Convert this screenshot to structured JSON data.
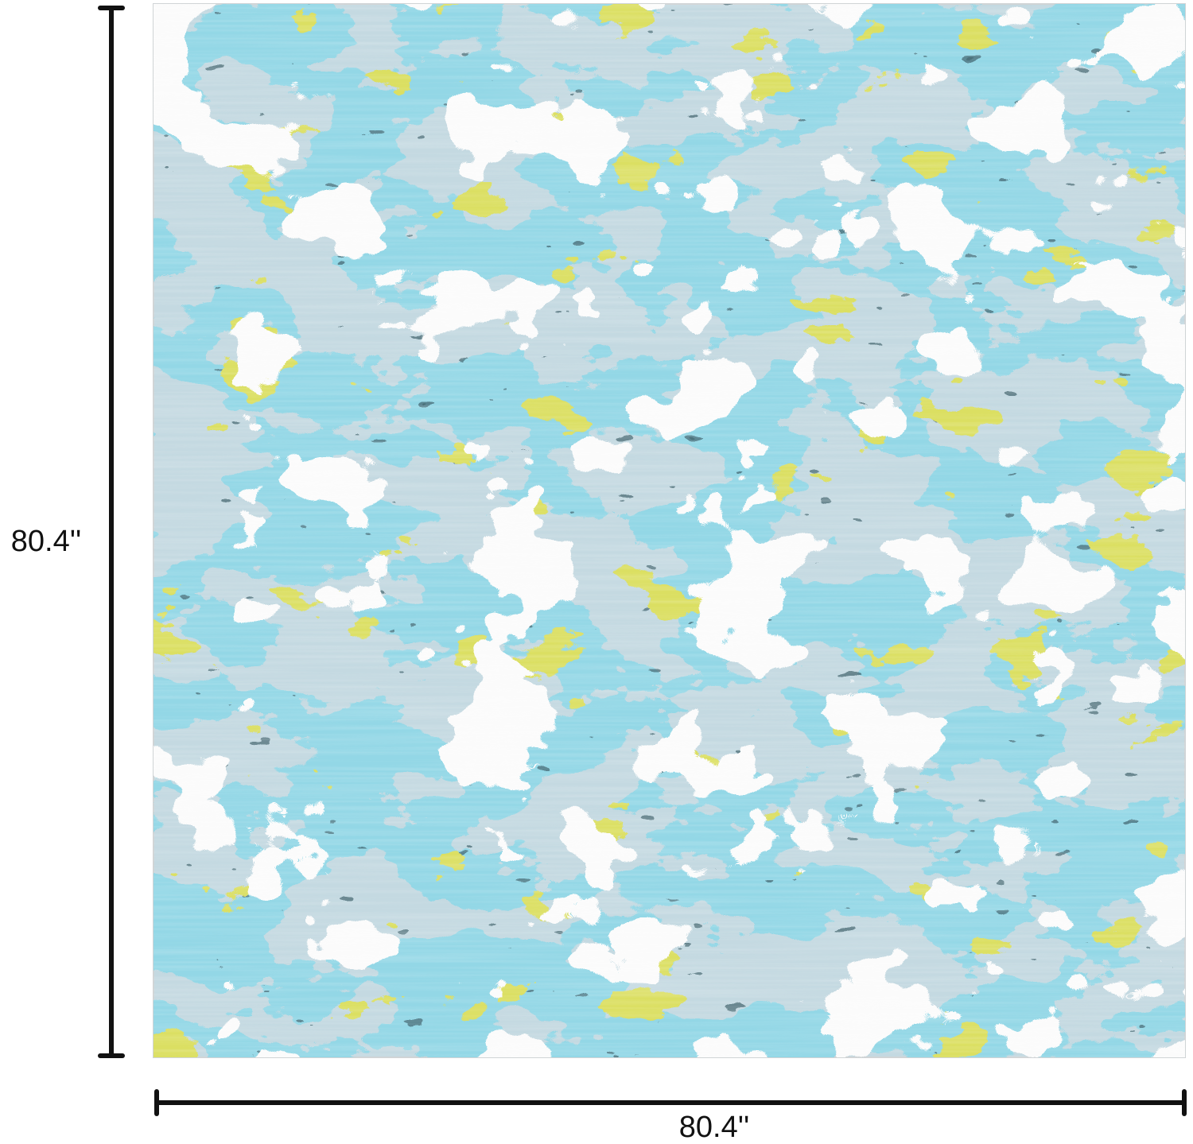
{
  "dimensions": {
    "height": "80.4''",
    "width": "80.4''"
  }
}
